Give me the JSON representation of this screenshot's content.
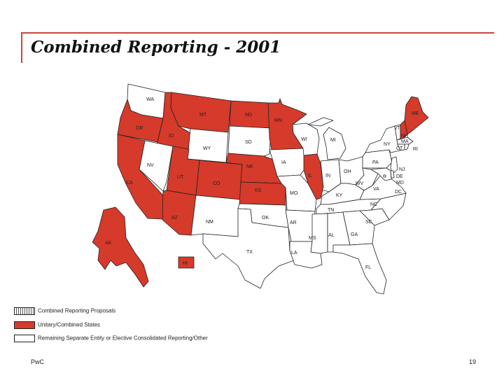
{
  "title": "Combined Reporting - 2001",
  "colors": {
    "combined": "#d63a2a",
    "separate": "#ffffff",
    "frame": "#c8473a"
  },
  "legend": [
    {
      "key": "proposal",
      "label": "Combined Reporting Proposals"
    },
    {
      "key": "combined",
      "label": "Unitary/Combined States"
    },
    {
      "key": "separate",
      "label": "Remaining Separate Entity or Elective Consolidated Reporting/Other"
    }
  ],
  "states": {
    "WA": "separate",
    "OR": "combined",
    "CA": "combined",
    "ID": "combined",
    "NV": "separate",
    "MT": "combined",
    "WY": "separate",
    "UT": "combined",
    "AZ": "combined",
    "CO": "combined",
    "NM": "separate",
    "ND": "combined",
    "SD": "separate",
    "NE": "combined",
    "KS": "combined",
    "OK": "separate",
    "TX": "separate",
    "MN": "combined",
    "IA": "separate",
    "MO": "separate",
    "AR": "separate",
    "LA": "separate",
    "WI": "separate",
    "IL": "combined",
    "MI": "separate",
    "IN": "separate",
    "OH": "separate",
    "KY": "separate",
    "TN": "separate",
    "MS": "separate",
    "AL": "separate",
    "GA": "separate",
    "FL": "separate",
    "SC": "separate",
    "NC": "separate",
    "VA": "separate",
    "WV": "separate",
    "PA": "separate",
    "NY": "separate",
    "VT": "separate",
    "NH": "combined",
    "ME": "combined",
    "MA": "separate",
    "RI": "separate",
    "CT": "separate",
    "NJ": "separate",
    "DE": "separate",
    "MD": "separate",
    "DC": "separate",
    "AK": "combined",
    "HI": "combined"
  },
  "labels": {
    "WA": "WA",
    "OR": "OR",
    "CA": "CA",
    "ID": "ID",
    "NV": "NV",
    "MT": "MT",
    "WY": "WY",
    "UT": "UT",
    "AZ": "AZ",
    "CO": "CO",
    "NM": "NM",
    "ND": "ND",
    "SD": "SD",
    "NE": "NE",
    "KS": "KS",
    "OK": "OK",
    "TX": "TX",
    "MN": "MN",
    "IA": "IA",
    "MO": "MO",
    "AR": "AR",
    "LA": "LA",
    "WI": "WI",
    "IL": "IL",
    "MI": "MI",
    "IN": "IN",
    "OH": "OH",
    "KY": "KY",
    "TN": "TN",
    "MS": "MS",
    "AL": "AL",
    "GA": "GA",
    "FL": "FL",
    "SC": "SC",
    "NC": "NC",
    "VA": "VA",
    "WV": "WV",
    "PA": "PA",
    "NY": "NY",
    "VT": "VT",
    "NH": "NH",
    "ME": "ME",
    "MA": "MA",
    "RI": "RI",
    "CT": "CT",
    "NJ": "NJ",
    "DE": "DE",
    "MD": "MD",
    "DC": "DC",
    "AK": "AK",
    "HI": "HI"
  },
  "footer": {
    "left": "PwC",
    "page": "19"
  }
}
